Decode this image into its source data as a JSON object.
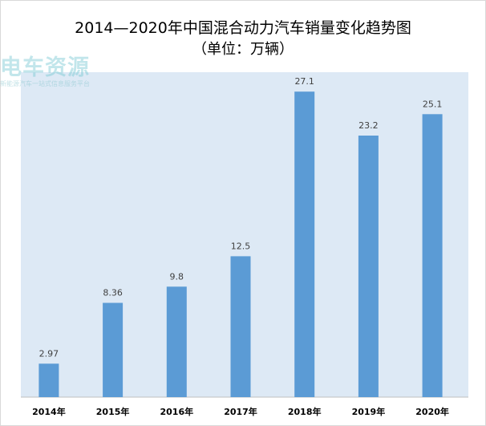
{
  "title": "2014—2020年中国混合动力汽车销量变化趋势图",
  "subtitle": "（单位：万辆）",
  "watermark": {
    "logo_text": "电车资源",
    "tagline": "新能源汽车一站式信息服务平台"
  },
  "colors": {
    "bar": "#5b9bd5",
    "plot_bg": "#dde9f5"
  },
  "chart_data": {
    "type": "bar",
    "categories": [
      "2014年",
      "2015年",
      "2016年",
      "2017年",
      "2018年",
      "2019年",
      "2020年"
    ],
    "values": [
      2.97,
      8.36,
      9.8,
      12.5,
      27.1,
      23.2,
      25.1
    ],
    "data_labels": [
      "2.97",
      "8.36",
      "9.8",
      "12.5",
      "27.1",
      "23.2",
      "25.1"
    ],
    "title": "2014—2020年中国混合动力汽车销量变化趋势图",
    "subtitle": "（单位：万辆）",
    "xlabel": "",
    "ylabel": "",
    "ylim": [
      0,
      30
    ],
    "grid": false,
    "legend": false
  }
}
